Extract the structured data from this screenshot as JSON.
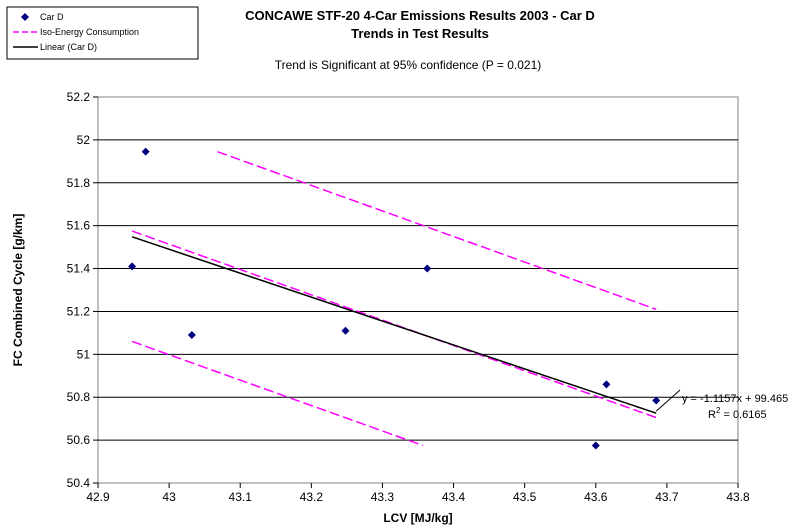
{
  "chart_data": {
    "type": "scatter",
    "title": "CONCAWE STF-20 4-Car Emissions Results 2003 - Car D",
    "subtitle": "Trends in Test Results",
    "annotation": "Trend is Significant at 95% confidence (P = 0.021)",
    "xlabel": "LCV [MJ/kg]",
    "ylabel": "FC Combined Cycle [g/km]",
    "xlim": [
      42.9,
      43.8
    ],
    "ylim": [
      50.4,
      52.2
    ],
    "x_ticks": [
      "42.9",
      "43",
      "43.1",
      "43.2",
      "43.3",
      "43.4",
      "43.5",
      "43.6",
      "43.7",
      "43.8"
    ],
    "y_ticks": [
      "50.4",
      "50.6",
      "50.8",
      "51",
      "51.2",
      "51.4",
      "51.6",
      "51.8",
      "52",
      "52.2"
    ],
    "grid": "horizontal",
    "legend_position": "top-left",
    "equation": "y = -1.1157x + 99.465",
    "r2_prefix": "R",
    "r2_sup": "2",
    "r2_value": " = 0.6165",
    "series": [
      {
        "name": "Car D",
        "kind": "points",
        "color": "#00007F",
        "points": [
          {
            "x": 42.948,
            "y": 51.41
          },
          {
            "x": 42.967,
            "y": 51.945
          },
          {
            "x": 43.032,
            "y": 51.09
          },
          {
            "x": 43.248,
            "y": 51.11
          },
          {
            "x": 43.363,
            "y": 51.4
          },
          {
            "x": 43.6,
            "y": 50.575
          },
          {
            "x": 43.615,
            "y": 50.86
          },
          {
            "x": 43.685,
            "y": 50.785
          }
        ]
      },
      {
        "name": "Iso-Energy Consumption",
        "kind": "dashed-lines",
        "color": "#FF00FF",
        "lines": [
          [
            {
              "x": 43.068,
              "y": 51.945
            },
            {
              "x": 43.685,
              "y": 51.21
            }
          ],
          [
            {
              "x": 42.948,
              "y": 51.575
            },
            {
              "x": 43.685,
              "y": 50.705
            }
          ],
          [
            {
              "x": 42.948,
              "y": 51.06
            },
            {
              "x": 43.357,
              "y": 50.575
            }
          ]
        ]
      },
      {
        "name": "Linear (Car D)",
        "kind": "trend",
        "color": "#000000",
        "slope": -1.1157,
        "intercept": 99.465,
        "x_range": [
          42.948,
          43.685
        ]
      }
    ]
  }
}
